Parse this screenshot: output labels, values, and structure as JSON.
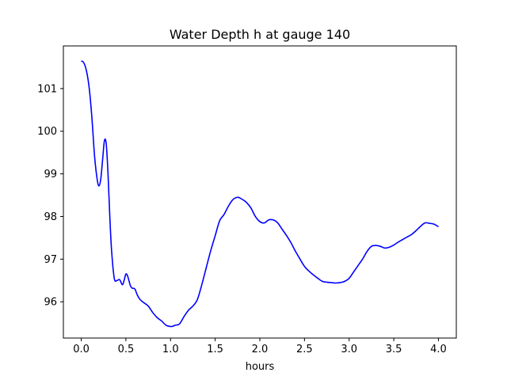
{
  "chart_data": {
    "type": "line",
    "title": "Water Depth h at gauge 140",
    "xlabel": "hours",
    "ylabel": "",
    "xlim": [
      -0.2,
      4.2
    ],
    "ylim": [
      95.15,
      102.0
    ],
    "xticks": [
      0.0,
      0.5,
      1.0,
      1.5,
      2.0,
      2.5,
      3.0,
      3.5,
      4.0
    ],
    "xtick_labels": [
      "0.0",
      "0.5",
      "1.0",
      "1.5",
      "2.0",
      "2.5",
      "3.0",
      "3.5",
      "4.0"
    ],
    "yticks": [
      96,
      97,
      98,
      99,
      100,
      101
    ],
    "ytick_labels": [
      "96",
      "97",
      "98",
      "99",
      "100",
      "101"
    ],
    "grid": false,
    "series": [
      {
        "color": "#0000ff",
        "x": [
          0.0,
          0.03,
          0.06,
          0.09,
          0.12,
          0.15,
          0.18,
          0.2,
          0.22,
          0.24,
          0.26,
          0.28,
          0.3,
          0.32,
          0.34,
          0.37,
          0.4,
          0.43,
          0.46,
          0.48,
          0.5,
          0.52,
          0.55,
          0.57,
          0.6,
          0.63,
          0.66,
          0.7,
          0.75,
          0.8,
          0.85,
          0.9,
          0.95,
          1.0,
          1.03,
          1.05,
          1.1,
          1.15,
          1.2,
          1.25,
          1.3,
          1.35,
          1.4,
          1.45,
          1.5,
          1.55,
          1.6,
          1.65,
          1.7,
          1.75,
          1.78,
          1.82,
          1.85,
          1.9,
          1.95,
          2.0,
          2.05,
          2.1,
          2.15,
          2.2,
          2.25,
          2.3,
          2.35,
          2.4,
          2.45,
          2.5,
          2.55,
          2.6,
          2.65,
          2.7,
          2.75,
          2.8,
          2.85,
          2.9,
          2.95,
          3.0,
          3.05,
          3.1,
          3.15,
          3.2,
          3.25,
          3.3,
          3.35,
          3.4,
          3.45,
          3.5,
          3.55,
          3.6,
          3.65,
          3.7,
          3.75,
          3.8,
          3.85,
          3.9,
          3.95,
          4.0
        ],
        "y": [
          101.65,
          101.6,
          101.4,
          101.0,
          100.3,
          99.4,
          98.85,
          98.72,
          98.9,
          99.35,
          99.78,
          99.7,
          99.0,
          98.0,
          97.2,
          96.55,
          96.5,
          96.52,
          96.4,
          96.5,
          96.65,
          96.6,
          96.38,
          96.32,
          96.3,
          96.15,
          96.05,
          95.98,
          95.9,
          95.75,
          95.63,
          95.55,
          95.45,
          95.42,
          95.43,
          95.45,
          95.48,
          95.65,
          95.8,
          95.9,
          96.05,
          96.4,
          96.8,
          97.2,
          97.55,
          97.9,
          98.05,
          98.25,
          98.4,
          98.45,
          98.43,
          98.38,
          98.33,
          98.2,
          98.0,
          97.88,
          97.85,
          97.92,
          97.92,
          97.85,
          97.7,
          97.55,
          97.38,
          97.18,
          97.0,
          96.83,
          96.72,
          96.63,
          96.55,
          96.48,
          96.46,
          96.45,
          96.44,
          96.45,
          96.48,
          96.55,
          96.7,
          96.85,
          97.0,
          97.18,
          97.3,
          97.32,
          97.3,
          97.26,
          97.28,
          97.33,
          97.4,
          97.46,
          97.52,
          97.58,
          97.67,
          97.77,
          97.85,
          97.84,
          97.82,
          97.76
        ]
      }
    ]
  }
}
